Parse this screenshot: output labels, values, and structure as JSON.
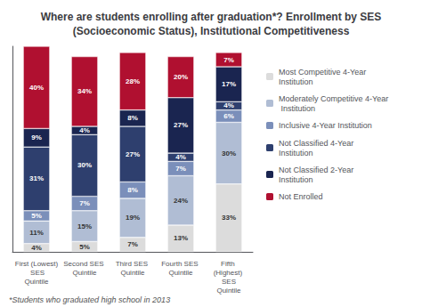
{
  "chart_data": {
    "type": "bar",
    "stacked": true,
    "title": "Where are students enrolling after graduation*? Enrollment by SES\n(Socioeconomic Status), Institutional Competitiveness",
    "annotations": [
      "*Students who graduated high school in 2013"
    ],
    "categories": [
      "First (Lowest) SES\nQuintile",
      "Second SES Quintile",
      "Third SES Quintile",
      "Fourth SES Quintile",
      "Fifth (Highest) SES\nQuintile"
    ],
    "series": [
      {
        "name": "Most Competitive 4-Year Institution",
        "color": "#dcdcdc",
        "values": [
          4,
          5,
          7,
          13,
          33
        ],
        "value_labels": [
          "4%",
          "5%",
          "7%",
          "13%",
          "33%"
        ]
      },
      {
        "name": "Moderately Competitive 4-Year Institution",
        "color": "#b0bdd4",
        "values": [
          11,
          15,
          19,
          24,
          30
        ],
        "value_labels": [
          "11%",
          "15%",
          "19%",
          "24%",
          "30%"
        ]
      },
      {
        "name": "Inclusive 4-Year Institution",
        "color": "#7b8fba",
        "values": [
          5,
          7,
          8,
          7,
          6
        ],
        "value_labels": [
          "5%",
          "7%",
          "8%",
          "7%",
          "6%"
        ]
      },
      {
        "name": "Not Classified 4-Year Institution",
        "color": "#2e3f6e",
        "values": [
          31,
          30,
          27,
          4,
          4
        ],
        "value_labels": [
          "31%",
          "30%",
          "27%",
          "4%",
          "4%"
        ]
      },
      {
        "name": "Not Classified 2-Year Institution",
        "color": "#1a2550",
        "values": [
          9,
          4,
          8,
          27,
          17
        ],
        "value_labels": [
          "9%",
          "4%",
          "8%",
          "27%",
          "17%"
        ]
      },
      {
        "name": "Not Enrolled",
        "color": "#b01030",
        "values": [
          40,
          34,
          28,
          20,
          7
        ],
        "value_labels": [
          "40%",
          "34%",
          "28%",
          "20%",
          "7%"
        ]
      }
    ],
    "ylim": [
      0,
      100
    ],
    "yticks": [],
    "tick_labels": "x",
    "data_labels": true,
    "grid": false,
    "legend": "right"
  }
}
